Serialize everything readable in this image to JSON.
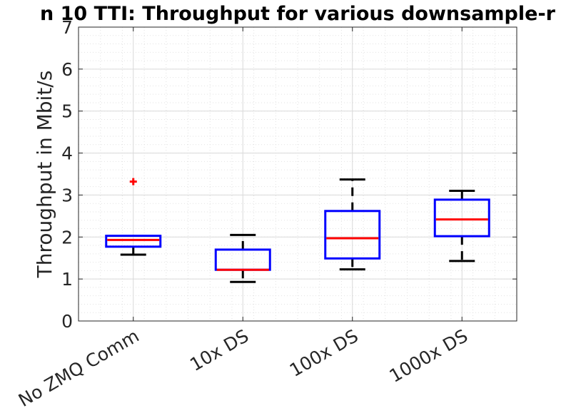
{
  "chart_data": {
    "type": "box",
    "title": "n 10 TTI: Throughput for various downsample-r",
    "ylabel": "Throughput in Mbit/s",
    "xlabel": "",
    "ylim": [
      0,
      7
    ],
    "yticks": [
      "0",
      "1",
      "2",
      "3",
      "4",
      "5",
      "6",
      "7"
    ],
    "grid": true,
    "minor_grid": true,
    "categories": [
      "No ZMQ Comm",
      "10x DS",
      "100x DS",
      "1000x DS"
    ],
    "boxes": [
      {
        "category": "No ZMQ Comm",
        "whisker_low": 1.58,
        "q1": 1.77,
        "median": 1.93,
        "q3": 2.03,
        "whisker_high": 2.03,
        "outliers": [
          3.32
        ]
      },
      {
        "category": "10x DS",
        "whisker_low": 0.93,
        "q1": 1.22,
        "median": 1.22,
        "q3": 1.7,
        "whisker_high": 2.05,
        "outliers": []
      },
      {
        "category": "100x DS",
        "whisker_low": 1.23,
        "q1": 1.49,
        "median": 1.97,
        "q3": 2.62,
        "whisker_high": 3.37,
        "outliers": []
      },
      {
        "category": "1000x DS",
        "whisker_low": 1.43,
        "q1": 2.02,
        "median": 2.42,
        "q3": 2.89,
        "whisker_high": 3.1,
        "outliers": []
      }
    ],
    "colors": {
      "box": "#0000ff",
      "median": "#ff0000",
      "whisker": "#000000",
      "outlier": "#ff0000",
      "grid": "#d9d9d9",
      "axes": "#262626"
    }
  }
}
